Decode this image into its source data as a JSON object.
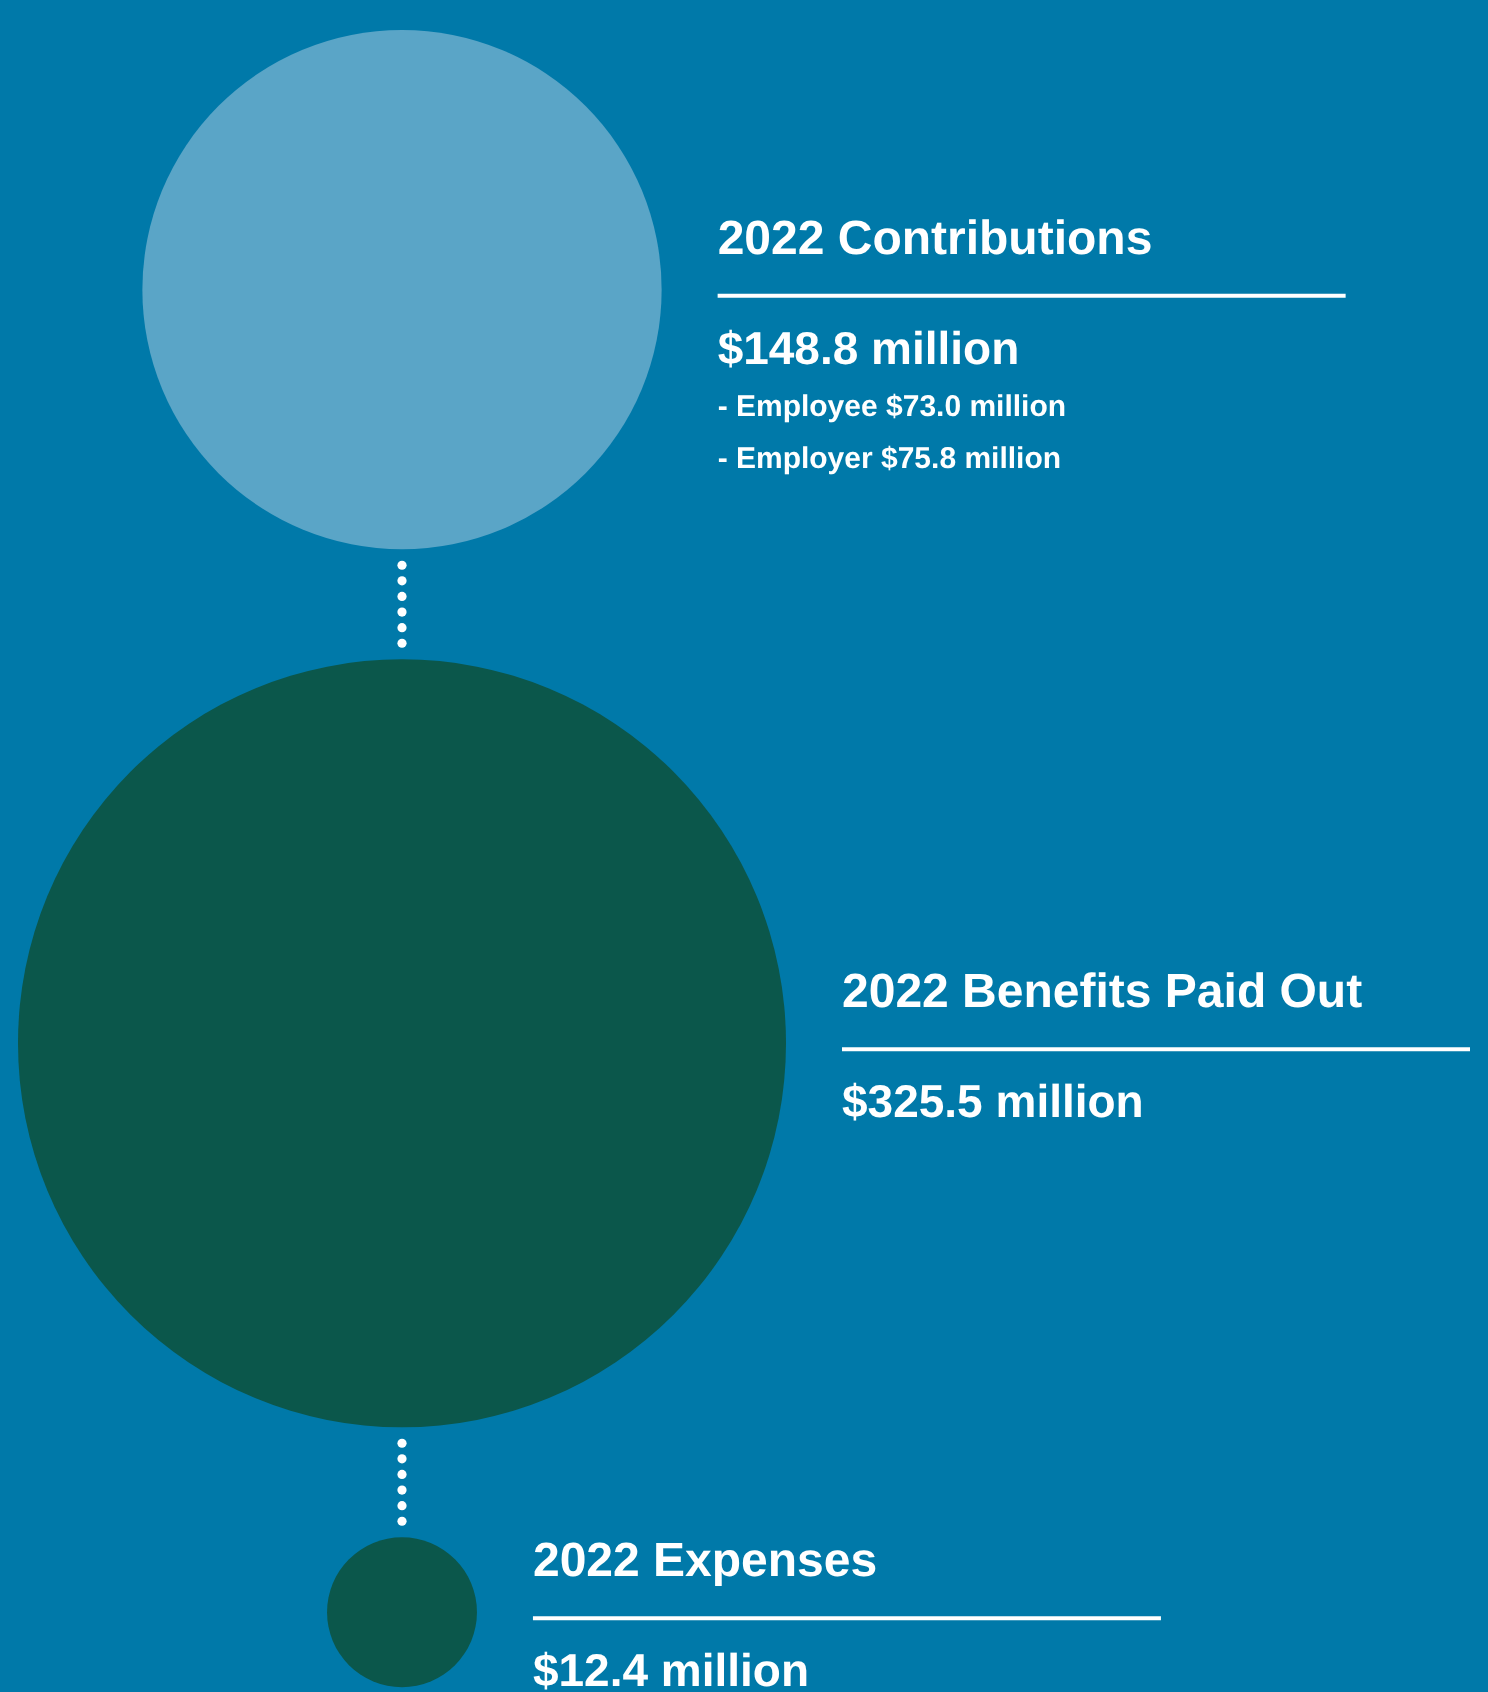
{
  "chart_data": {
    "type": "other",
    "categories": [
      "2022 Contributions",
      "2022 Benefits Paid Out",
      "2022 Expenses"
    ],
    "values": [
      148.8,
      325.5,
      12.4
    ],
    "value_labels": [
      "$148.8 million",
      "$325.5 million",
      "$12.4 million"
    ],
    "colors": [
      "#5aa5c7",
      "#0b574b",
      "#0b574b"
    ],
    "annotations": [
      "- Employee $73.0 million",
      "- Employer $75.8 million"
    ]
  }
}
